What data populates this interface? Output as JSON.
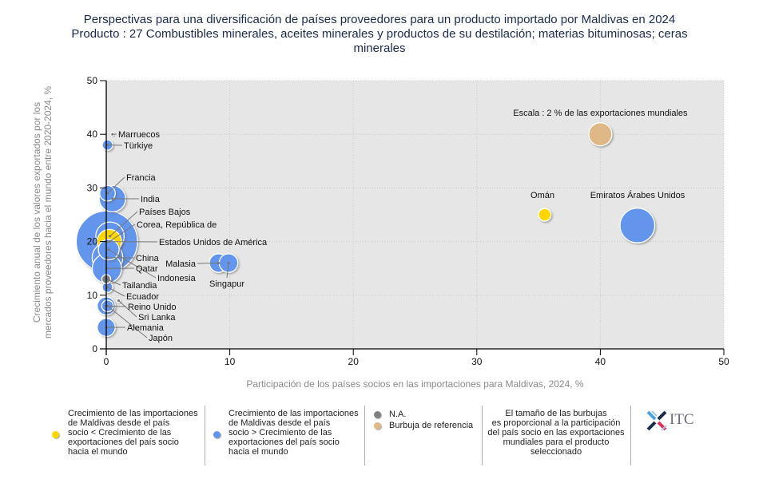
{
  "title": {
    "line1": "Perspectivas para una diversificación de países proveedores para un producto importado por Maldivas en 2024",
    "line2": "Producto : 27 Combustibles minerales, aceites minerales y productos de su destilación; materias bituminosas; ceras",
    "line3": "minerales"
  },
  "colors": {
    "blue": "#6495ED",
    "yellow": "#FFD700",
    "gray": "#7F7F7F",
    "reference": "#DEB887",
    "plot_bg": "#E6E6E6"
  },
  "chart_data": {
    "type": "scatter",
    "subtype": "bubble",
    "title": "Perspectivas para una diversificación de países proveedores para un producto importado por Maldivas en 2024",
    "xlabel": "Participación de los países socios en las importaciones para Maldivas, 2024, %",
    "ylabel": "Crecimiento anual de los valores exportados por los mercados proveedores hacia el mundo entre 2020-2024, %",
    "xlim": [
      0,
      50
    ],
    "ylim": [
      0,
      50
    ],
    "xticks": [
      0,
      10,
      20,
      30,
      40,
      50
    ],
    "yticks": [
      0,
      10,
      20,
      30,
      40,
      50
    ],
    "grid": true,
    "reference_label": "Escala : 2 % de las exportaciones mundiales",
    "points": [
      {
        "name": "Estados Unidos de América",
        "x": 0.05,
        "y": 20.0,
        "size": 14.0,
        "category": "blue"
      },
      {
        "name": "Países Bajos",
        "x": 0.3,
        "y": 21.0,
        "size": 3.0,
        "category": "blue"
      },
      {
        "name": "Corea, República de",
        "x": 0.25,
        "y": 20.0,
        "size": 2.2,
        "category": "yellow"
      },
      {
        "name": "China",
        "x": 0.1,
        "y": 17.0,
        "size": 3.5,
        "category": "blue"
      },
      {
        "name": "Indonesia",
        "x": 0.2,
        "y": 18.5,
        "size": 1.6,
        "category": "blue"
      },
      {
        "name": "Qatar",
        "x": 0.05,
        "y": 15.0,
        "size": 3.2,
        "category": "blue"
      },
      {
        "name": "Tailandia",
        "x": 0.0,
        "y": 13.0,
        "size": 0.3,
        "category": "gray"
      },
      {
        "name": "Ecuador",
        "x": 0.1,
        "y": 11.5,
        "size": 0.4,
        "category": "blue"
      },
      {
        "name": "Reino Unido",
        "x": 0.0,
        "y": 8.0,
        "size": 1.2,
        "category": "blue"
      },
      {
        "name": "Sri Lanka",
        "x": 1.0,
        "y": 9.0,
        "size": 0.05,
        "category": "blue"
      },
      {
        "name": "Alemania",
        "x": 0.0,
        "y": 4.0,
        "size": 1.2,
        "category": "blue"
      },
      {
        "name": "Japón",
        "x": 0.1,
        "y": 8.0,
        "size": 0.5,
        "category": "blue"
      },
      {
        "name": "Francia",
        "x": 0.1,
        "y": 29.0,
        "size": 0.9,
        "category": "blue"
      },
      {
        "name": "India",
        "x": 0.5,
        "y": 28.0,
        "size": 2.6,
        "category": "blue"
      },
      {
        "name": "Marruecos",
        "x": 0.5,
        "y": 40.0,
        "size": 0.02,
        "category": "gray"
      },
      {
        "name": "Türkiye",
        "x": 0.1,
        "y": 38.0,
        "size": 0.4,
        "category": "blue"
      },
      {
        "name": "Malasia",
        "x": 9.1,
        "y": 16.0,
        "size": 1.3,
        "category": "blue"
      },
      {
        "name": "Singapur",
        "x": 9.9,
        "y": 16.0,
        "size": 1.3,
        "category": "blue"
      },
      {
        "name": "Omán",
        "x": 35.5,
        "y": 25.0,
        "size": 0.6,
        "category": "yellow"
      },
      {
        "name": "Emiratos Árabes Unidos",
        "x": 43.0,
        "y": 23.0,
        "size": 4.5,
        "category": "blue"
      },
      {
        "name": "Escala",
        "x": 40.0,
        "y": 40.0,
        "size": 2.0,
        "category": "reference"
      }
    ],
    "legend": [
      {
        "color": "yellow",
        "label": "Crecimiento de las importaciones de Maldivas desde el país socio < Crecimiento de las exportaciones del país socio hacia el mundo"
      },
      {
        "color": "blue",
        "label": "Crecimiento de las importaciones de Maldivas desde el país socio > Crecimiento de las exportaciones del país socio hacia el mundo"
      },
      {
        "color": "gray",
        "label": "N.A."
      },
      {
        "color": "reference",
        "label": "Burbuja de referencia"
      }
    ],
    "legend_placement": "bottom",
    "size_note": "El tamaño de las burbujas es proporcional a la participación del país socio en las exportaciones mundiales para el producto seleccionado"
  },
  "legend": {
    "yellow_lines": [
      "Crecimiento de las importaciones",
      "de Maldivas desde el país",
      "socio < Crecimiento de las",
      "exportaciones del país socio",
      "hacia el mundo"
    ],
    "blue_lines": [
      "Crecimiento de las importaciones",
      "de Maldivas desde el país",
      "socio > Crecimiento de las",
      "exportaciones del país socio",
      "hacia el mundo"
    ],
    "na": "N.A.",
    "reference": "Burbuja de referencia",
    "note_lines": [
      "El tamaño de las burbujas",
      "es proporcional a la participación",
      "del país socio en las exportaciones",
      "mundiales para el producto",
      "seleccionado"
    ]
  },
  "logo": {
    "text": "ITC"
  }
}
